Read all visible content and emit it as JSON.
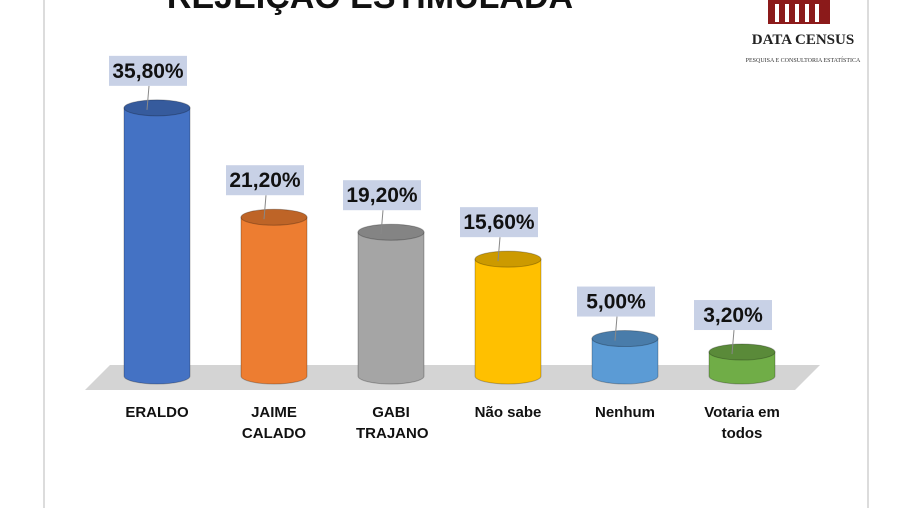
{
  "chart_data": {
    "type": "bar3d",
    "title": "REJEIÇÃO ESTIMULADA",
    "categories": [
      "ERALDO",
      "JAIME CALADO",
      "GABI TRAJANO",
      "Não sabe",
      "Nenhum",
      "Votaria em todos"
    ],
    "values": [
      35.8,
      21.2,
      19.2,
      15.6,
      5.0,
      3.2
    ],
    "value_labels": [
      "35,80%",
      "21,20%",
      "19,20%",
      "15,60%",
      "5,00%",
      "3,20%"
    ],
    "colors": [
      "#4472c4",
      "#ed7d31",
      "#a5a5a5",
      "#ffc000",
      "#5b9bd5",
      "#70ad47"
    ]
  },
  "logo": {
    "name": "DATA CENSUS",
    "tagline": "PESQUISA E CONSULTORIA ESTATÍSTICA"
  }
}
